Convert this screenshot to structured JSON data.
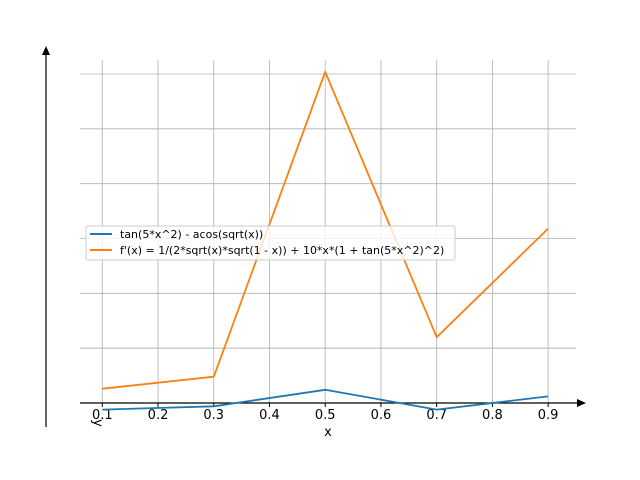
{
  "chart_data": {
    "type": "line",
    "xlabel": "x",
    "ylabel": "y",
    "xlim": [
      0.06,
      0.95
    ],
    "ylim": [
      -0.25,
      3.0
    ],
    "xticks": [
      0.1,
      0.2,
      0.3,
      0.4,
      0.5,
      0.6,
      0.7,
      0.8,
      0.9
    ],
    "xtick_labels": [
      "0.1",
      "0.2",
      "0.3",
      "0.4",
      "0.5",
      "0.6",
      "0.7",
      "0.8",
      "0.9"
    ],
    "y_gridlines": [
      0.5,
      1.0,
      1.5,
      2.0,
      2.5,
      3.0
    ],
    "grid": true,
    "legend_position": "center-left",
    "series": [
      {
        "name": "tan(5*x^2) - acos(sqrt(x))",
        "color": "#1f77b4",
        "x": [
          0.1,
          0.3,
          0.5,
          0.7,
          0.9
        ],
        "y": [
          -0.06,
          -0.03,
          0.12,
          -0.06,
          0.06
        ]
      },
      {
        "name": "f'(x) = 1/(2*sqrt(x)*sqrt(1 - x)) + 10*x*(1 + tan(5*x^2)^2)",
        "color": "#ff7f0e",
        "x": [
          0.1,
          0.3,
          0.5,
          0.7,
          0.9
        ],
        "y": [
          0.13,
          0.24,
          3.02,
          0.6,
          1.59
        ]
      }
    ]
  }
}
